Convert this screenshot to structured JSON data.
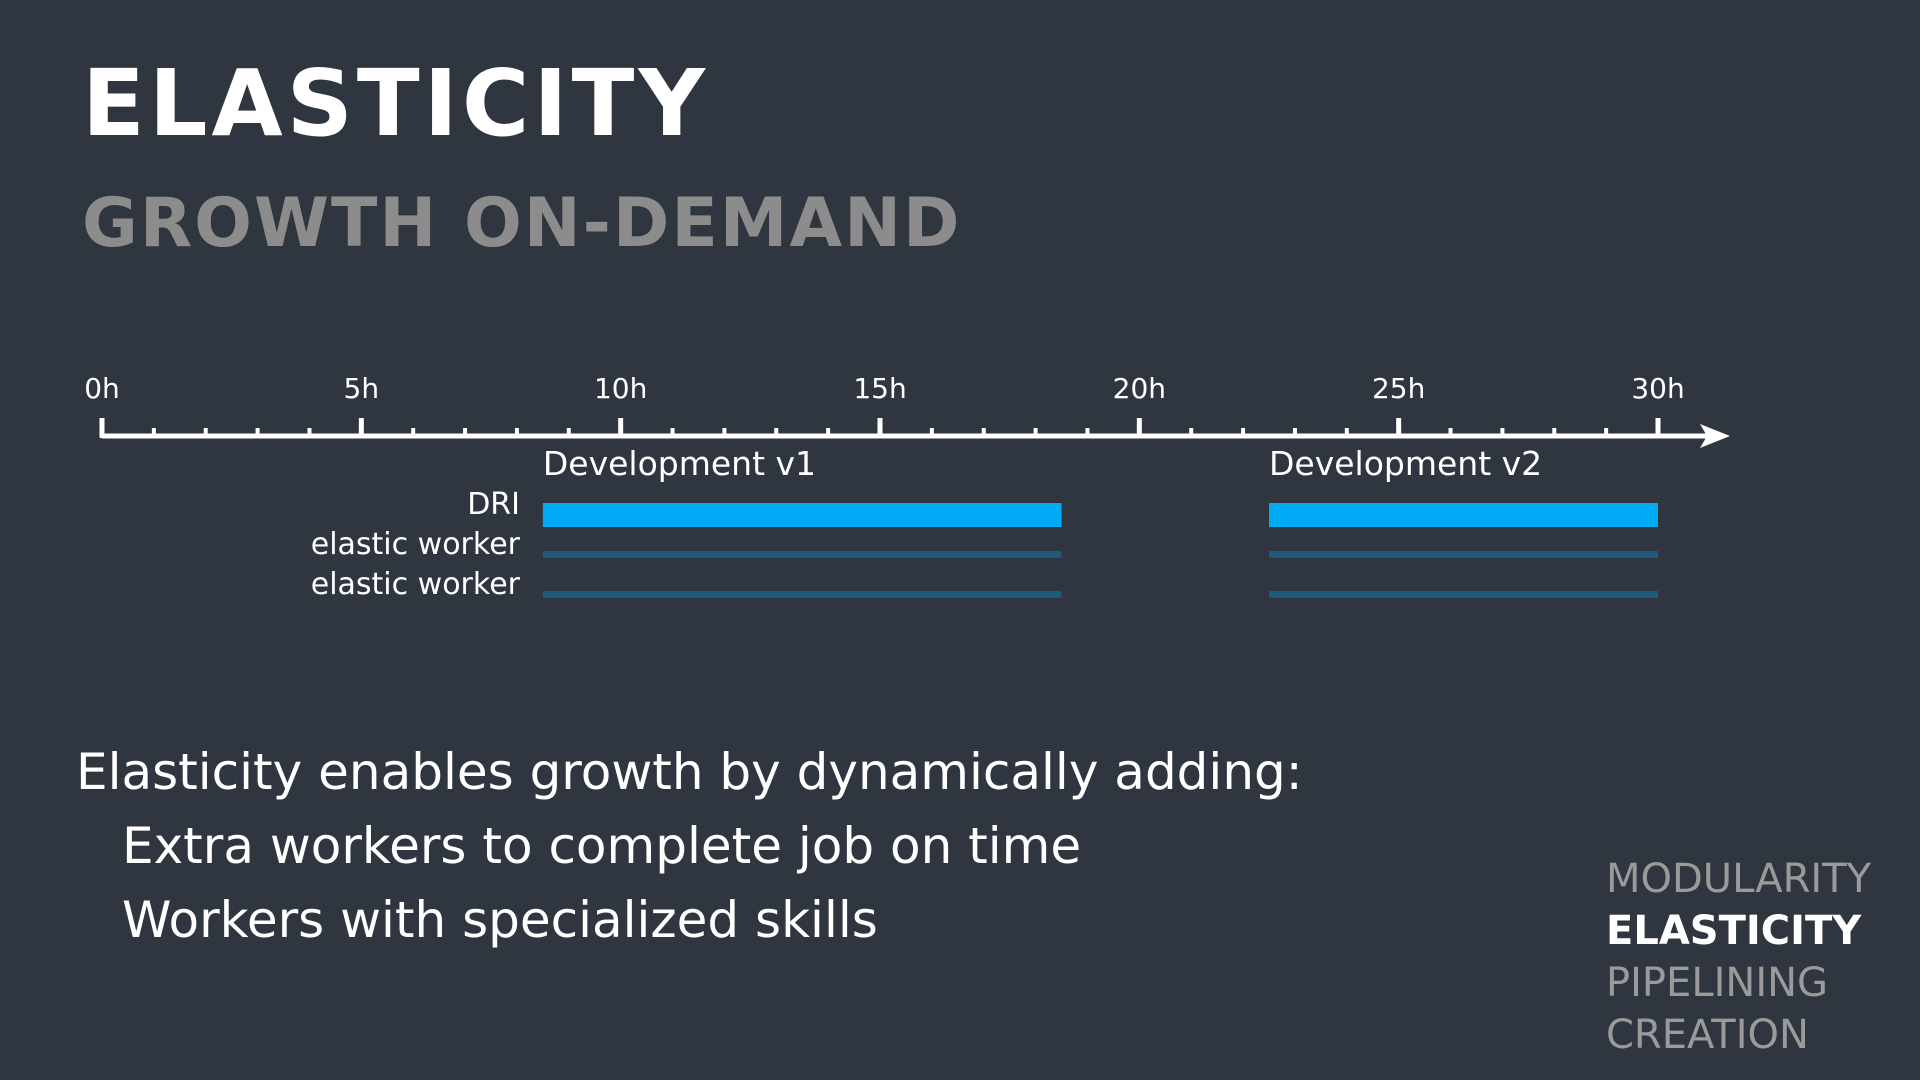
{
  "slide": {
    "title": "ELASTICITY",
    "subtitle": "GROWTH ON-DEMAND",
    "body_intro": "Elasticity enables growth by dynamically adding:",
    "bullets": [
      "Extra workers to complete job on time",
      "Workers with specialized skills"
    ],
    "nav": [
      {
        "label": "MODULARITY",
        "active": false
      },
      {
        "label": "ELASTICITY",
        "active": true
      },
      {
        "label": "PIPELINING",
        "active": false
      },
      {
        "label": "CREATION",
        "active": false
      }
    ]
  },
  "colors": {
    "background": "#30363f",
    "dri_bar": "#00aaf5",
    "worker_bar": "#1f5a7a",
    "subtitle": "#8c8c8c"
  },
  "chart_data": {
    "type": "gantt",
    "axis": {
      "ticks": [
        "0h",
        "5h",
        "10h",
        "15h",
        "20h",
        "25h",
        "30h"
      ],
      "min": 0,
      "max": 30,
      "major_step": 5,
      "minor_step": 1
    },
    "row_labels": [
      "DRI",
      "elastic worker",
      "elastic worker"
    ],
    "phases": [
      {
        "name": "Development v1",
        "start": 8.5,
        "end": 18.5
      },
      {
        "name": "Development v2",
        "start": 22.5,
        "end": 30
      }
    ]
  }
}
